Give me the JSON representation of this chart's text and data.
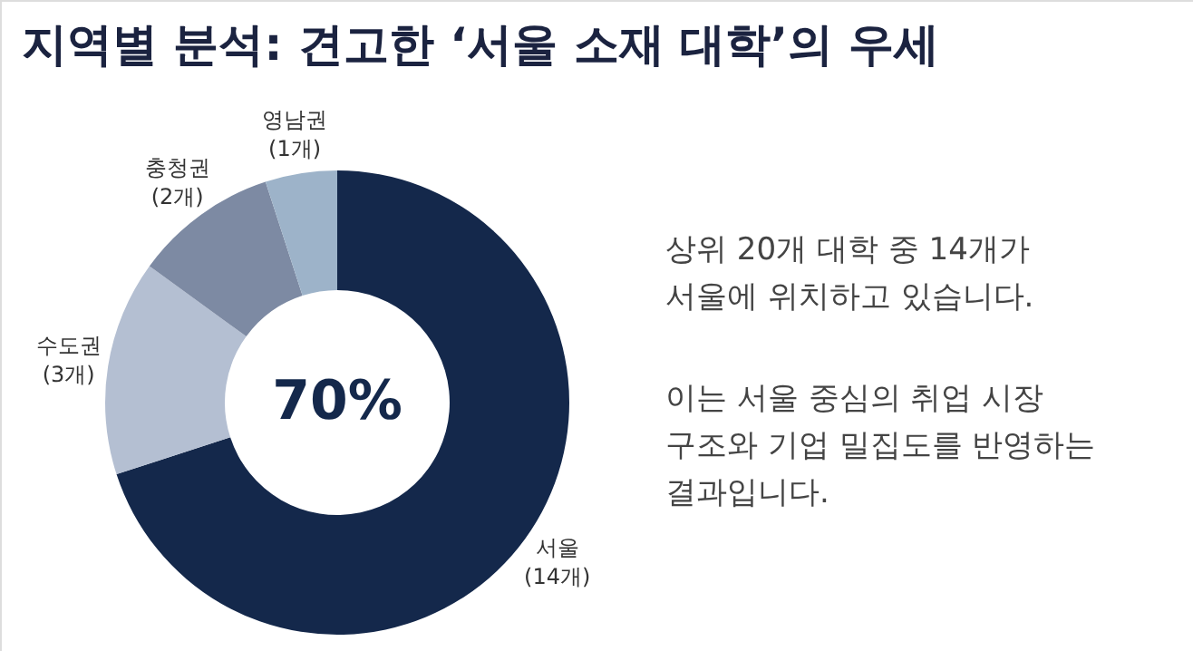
{
  "chart_data": {
    "type": "donut",
    "title": "지역별 분석: 견고한 ‘서울 소재 대학’의 우세",
    "categories": [
      "서울",
      "수도권",
      "충청권",
      "영남권"
    ],
    "values": [
      14,
      3,
      2,
      1
    ],
    "value_labels": [
      "(14개)",
      "(3개)",
      "(2개)",
      "(1개)"
    ],
    "colors": [
      "#14284b",
      "#b4bfd2",
      "#7d8aa3",
      "#9db3c9"
    ],
    "annotations": [
      "70%",
      "상위 20개 대학 중 14개가\n서울에 위치하고 있습니다.",
      "이는 서울 중심의 취업 시장\n구조와 기업 밀집도를 반영하는\n결과입니다."
    ],
    "legend": false
  }
}
